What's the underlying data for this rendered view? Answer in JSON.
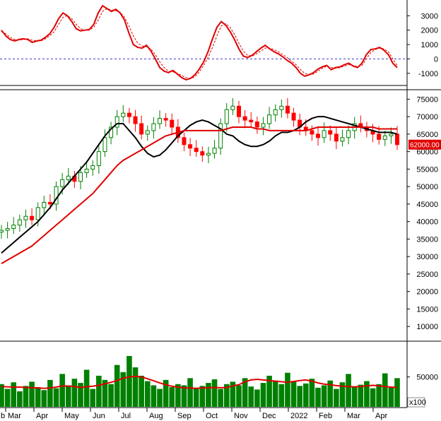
{
  "chart_data": [
    {
      "type": "line",
      "panel": "oscillator",
      "y_ticks": [
        -1000,
        0,
        1000,
        2000,
        3000
      ],
      "ylim": [
        -1600,
        3900
      ],
      "zero_line": true,
      "colors": {
        "main": "#e00000",
        "signal": "#e00000",
        "zero": "#3a3ad0"
      },
      "series": [
        {
          "style": "solid",
          "values": [
            2000,
            1600,
            1350,
            1250,
            1350,
            1400,
            1350,
            1150,
            1250,
            1300,
            1500,
            1750,
            2200,
            2800,
            3200,
            3000,
            2600,
            2100,
            1950,
            2000,
            2050,
            2400,
            3200,
            3700,
            3500,
            3300,
            3450,
            3200,
            2700,
            1800,
            1000,
            800,
            750,
            950,
            550,
            0,
            -600,
            -850,
            -950,
            -800,
            -1050,
            -1300,
            -1450,
            -1350,
            -1100,
            -700,
            -200,
            500,
            1400,
            2200,
            2600,
            2350,
            1900,
            1350,
            700,
            200,
            100,
            250,
            500,
            750,
            950,
            700,
            500,
            350,
            150,
            -100,
            -300,
            -600,
            -1000,
            -1200,
            -1100,
            -950,
            -700,
            -550,
            -450,
            -750,
            -600,
            -550,
            -400,
            -300,
            -500,
            -600,
            -300,
            300,
            650,
            700,
            800,
            600,
            300,
            -300,
            -600
          ]
        },
        {
          "style": "dashed",
          "values": [
            1900,
            1750,
            1500,
            1350,
            1300,
            1350,
            1400,
            1300,
            1250,
            1250,
            1400,
            1600,
            1900,
            2400,
            2900,
            3000,
            2800,
            2400,
            2100,
            2000,
            2000,
            2200,
            2700,
            3300,
            3500,
            3400,
            3350,
            3250,
            2900,
            2300,
            1600,
            1100,
            900,
            850,
            700,
            300,
            -200,
            -600,
            -850,
            -900,
            -1000,
            -1150,
            -1300,
            -1350,
            -1250,
            -900,
            -450,
            100,
            800,
            1600,
            2300,
            2450,
            2200,
            1700,
            1100,
            550,
            250,
            200,
            350,
            550,
            750,
            750,
            650,
            500,
            300,
            100,
            -150,
            -400,
            -750,
            -1000,
            -1100,
            -1050,
            -850,
            -650,
            -500,
            -600,
            -650,
            -600,
            -500,
            -400,
            -450,
            -550,
            -450,
            0,
            450,
            650,
            750,
            700,
            500,
            0,
            -450
          ]
        }
      ]
    },
    {
      "type": "candlestick",
      "panel": "price",
      "y_ticks": [
        10000,
        15000,
        20000,
        25000,
        30000,
        35000,
        40000,
        45000,
        50000,
        55000,
        60000,
        65000,
        70000,
        75000
      ],
      "ylim": [
        6000,
        77500
      ],
      "last_price_label": "62000.00",
      "colors": {
        "up": "#008000",
        "down": "#ff0000",
        "ma_fast": "#000000",
        "ma_slow": "#e00000",
        "badge": "#e00000"
      },
      "close": [
        37500,
        38000,
        39000,
        40500,
        41500,
        40500,
        44000,
        45500,
        45000,
        50000,
        52000,
        53000,
        51500,
        54000,
        55000,
        56000,
        60000,
        64000,
        67000,
        70000,
        71000,
        70000,
        68000,
        65000,
        66000,
        68000,
        69500,
        69000,
        67000,
        64000,
        62000,
        61000,
        60000,
        59000,
        59500,
        61000,
        68000,
        72000,
        73000,
        70000,
        69000,
        68500,
        67000,
        68000,
        70500,
        72000,
        73000,
        71000,
        69000,
        67000,
        66000,
        65000,
        64000,
        66000,
        65000,
        63000,
        64000,
        66000,
        68000,
        67000,
        66000,
        65000,
        63500,
        64500,
        65000,
        62000
      ],
      "ma_fast": [
        31000,
        32500,
        34000,
        35500,
        37000,
        38500,
        40000,
        42000,
        44000,
        46500,
        49000,
        51000,
        53000,
        55000,
        57000,
        59500,
        62000,
        64500,
        66500,
        68000,
        68000,
        66000,
        64000,
        61500,
        59500,
        58500,
        59000,
        60500,
        62500,
        64500,
        66000,
        67500,
        68500,
        69000,
        68500,
        67500,
        66500,
        65000,
        64500,
        63000,
        62000,
        61500,
        61500,
        62000,
        63000,
        64500,
        65500,
        65500,
        66000,
        67000,
        68500,
        69500,
        70000,
        70000,
        69500,
        69000,
        68500,
        68000,
        67500,
        67000,
        66500,
        66000,
        65500,
        65500,
        65500,
        65000
      ],
      "ma_slow": [
        28000,
        29000,
        30000,
        31000,
        32000,
        33000,
        34500,
        36000,
        37500,
        39000,
        40500,
        42000,
        43500,
        45000,
        46500,
        48000,
        50000,
        52000,
        54000,
        56000,
        57500,
        58500,
        59500,
        60500,
        61500,
        62500,
        63500,
        64500,
        65000,
        65500,
        66000,
        66000,
        66000,
        66000,
        66000,
        66000,
        66000,
        66500,
        67000,
        67000,
        67000,
        67000,
        66500,
        66500,
        66000,
        66000,
        66000,
        66000,
        66000,
        66000,
        66000,
        66500,
        67000,
        67000,
        67000,
        67000,
        67000,
        67000,
        67000,
        67000,
        67000,
        67000,
        66500,
        66500,
        66500,
        66500
      ]
    },
    {
      "type": "bar",
      "panel": "volume",
      "y_ticks": [
        50000
      ],
      "unit": "x100",
      "ylim": [
        0,
        105000
      ],
      "colors": {
        "bars": "#008000",
        "ma": "#e00000"
      },
      "values": [
        38000,
        30000,
        41000,
        26000,
        35000,
        42000,
        33000,
        28000,
        45000,
        31000,
        55000,
        36000,
        47000,
        40000,
        62000,
        30000,
        52000,
        45000,
        38000,
        70000,
        58000,
        85000,
        66000,
        52000,
        43000,
        36000,
        30000,
        45000,
        33000,
        38000,
        36000,
        48000,
        31000,
        35000,
        40000,
        46000,
        30000,
        38000,
        42000,
        36000,
        48000,
        34000,
        29000,
        40000,
        52000,
        44000,
        38000,
        57000,
        43000,
        35000,
        39000,
        47000,
        32000,
        36000,
        44000,
        30000,
        41000,
        55000,
        34000,
        37000,
        43000,
        31000,
        38000,
        56000,
        32000,
        48000
      ],
      "ma": [
        34000,
        33500,
        33000,
        33000,
        32500,
        32000,
        31500,
        31000,
        31500,
        33000,
        35000,
        34500,
        34000,
        32500,
        33500,
        34500,
        36000,
        38500,
        41000,
        44000,
        48000,
        50000,
        51000,
        50000,
        47000,
        43500,
        40000,
        37000,
        34500,
        33000,
        32000,
        31500,
        31000,
        31500,
        32000,
        32500,
        32000,
        32500,
        35000,
        37000,
        42000,
        45000,
        46000,
        45000,
        44000,
        43000,
        42000,
        41000,
        42500,
        44000,
        45000,
        43000,
        40000,
        38000,
        37000,
        35500,
        34500,
        34000,
        33500,
        34000,
        35000,
        36000,
        35000,
        34000,
        33000,
        32500
      ]
    }
  ],
  "x_axis": {
    "month_labels": [
      "Mar",
      "Apr",
      "May",
      "Jun",
      "Jul",
      "Aug",
      "Sep",
      "Oct",
      "Nov",
      "Dec",
      "2022",
      "Feb",
      "Mar",
      "Apr"
    ],
    "first_partial_label": "b"
  },
  "footer": {
    "unit_label": "x100"
  }
}
